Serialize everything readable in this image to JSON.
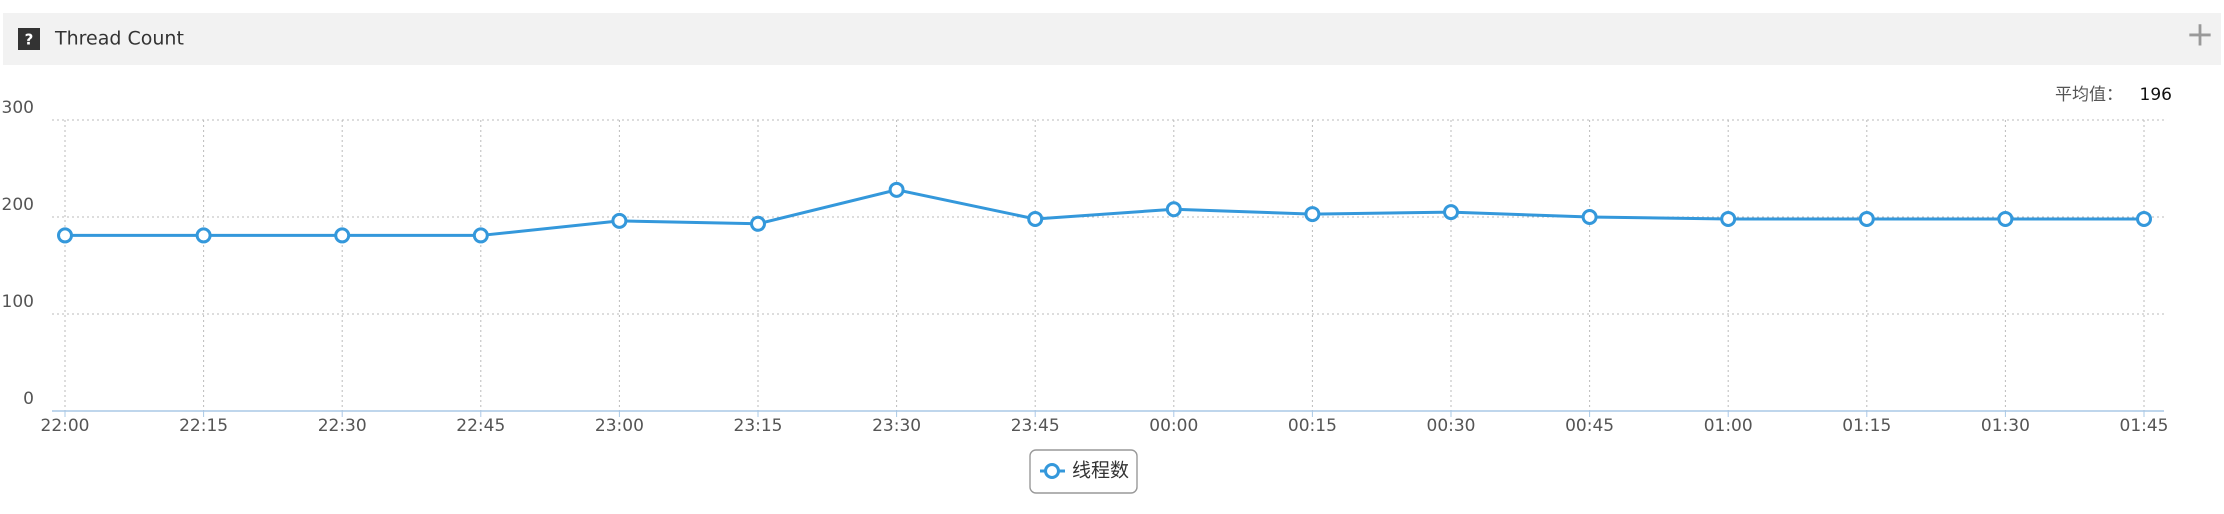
{
  "panel_title": "Thread Count",
  "help_icon": "?",
  "add_icon": "+",
  "average": {
    "label": "平均值：",
    "value": 196
  },
  "chart_data": {
    "type": "line",
    "categories": [
      "22:00",
      "22:15",
      "22:30",
      "22:45",
      "23:00",
      "23:15",
      "23:30",
      "23:45",
      "00:00",
      "00:15",
      "00:30",
      "00:45",
      "01:00",
      "01:15",
      "01:30",
      "01:45"
    ],
    "series": [
      {
        "name": "线程数",
        "color": "#3498db",
        "values": [
          181,
          181,
          181,
          181,
          196,
          193,
          228,
          198,
          208,
          203,
          205,
          200,
          198,
          198,
          198,
          198
        ]
      }
    ],
    "ylim": [
      0,
      300
    ],
    "yticks": [
      0,
      100,
      200,
      300
    ],
    "grid": true
  }
}
